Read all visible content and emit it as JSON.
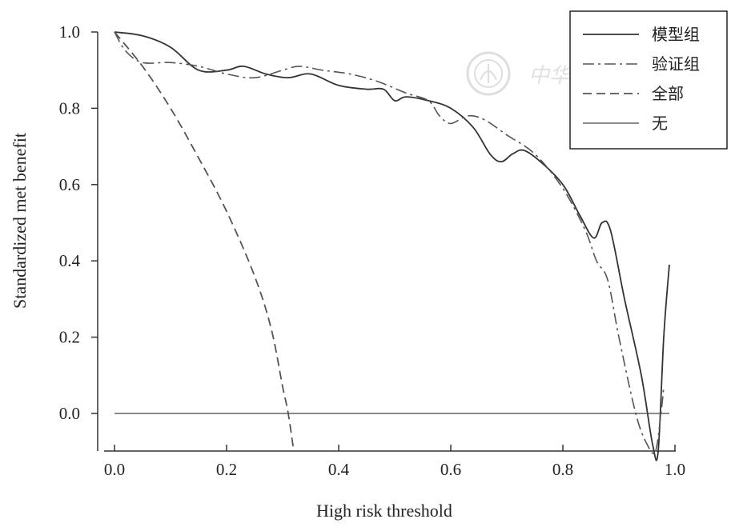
{
  "chart_data": {
    "type": "line",
    "title": "",
    "xlabel": "High risk threshold",
    "ylabel": "Standardized met benefit",
    "xlim": [
      0.0,
      1.0
    ],
    "ylim": [
      -0.1,
      1.0
    ],
    "x_ticks": [
      "0.0",
      "0.2",
      "0.4",
      "0.6",
      "0.8",
      "1.0"
    ],
    "y_ticks": [
      "0.0",
      "0.2",
      "0.4",
      "0.6",
      "0.8",
      "1.0"
    ],
    "legend_position": "top-right",
    "series": [
      {
        "name": "模型组",
        "style": "solid",
        "points": [
          [
            0.0,
            1.0
          ],
          [
            0.05,
            0.99
          ],
          [
            0.1,
            0.96
          ],
          [
            0.15,
            0.9
          ],
          [
            0.2,
            0.9
          ],
          [
            0.23,
            0.91
          ],
          [
            0.27,
            0.89
          ],
          [
            0.31,
            0.88
          ],
          [
            0.35,
            0.89
          ],
          [
            0.4,
            0.86
          ],
          [
            0.45,
            0.85
          ],
          [
            0.48,
            0.85
          ],
          [
            0.5,
            0.82
          ],
          [
            0.52,
            0.83
          ],
          [
            0.56,
            0.82
          ],
          [
            0.6,
            0.8
          ],
          [
            0.64,
            0.75
          ],
          [
            0.67,
            0.68
          ],
          [
            0.69,
            0.66
          ],
          [
            0.71,
            0.68
          ],
          [
            0.73,
            0.69
          ],
          [
            0.76,
            0.66
          ],
          [
            0.8,
            0.6
          ],
          [
            0.83,
            0.52
          ],
          [
            0.855,
            0.46
          ],
          [
            0.87,
            0.5
          ],
          [
            0.885,
            0.48
          ],
          [
            0.91,
            0.3
          ],
          [
            0.94,
            0.1
          ],
          [
            0.96,
            -0.08
          ],
          [
            0.97,
            -0.1
          ],
          [
            0.98,
            0.2
          ],
          [
            0.99,
            0.39
          ]
        ]
      },
      {
        "name": "验证组",
        "style": "dashdot",
        "points": [
          [
            0.0,
            1.0
          ],
          [
            0.02,
            0.95
          ],
          [
            0.05,
            0.92
          ],
          [
            0.1,
            0.92
          ],
          [
            0.15,
            0.91
          ],
          [
            0.2,
            0.89
          ],
          [
            0.25,
            0.88
          ],
          [
            0.3,
            0.9
          ],
          [
            0.33,
            0.91
          ],
          [
            0.37,
            0.9
          ],
          [
            0.42,
            0.89
          ],
          [
            0.47,
            0.87
          ],
          [
            0.52,
            0.84
          ],
          [
            0.56,
            0.82
          ],
          [
            0.58,
            0.78
          ],
          [
            0.6,
            0.76
          ],
          [
            0.63,
            0.78
          ],
          [
            0.66,
            0.77
          ],
          [
            0.7,
            0.73
          ],
          [
            0.75,
            0.68
          ],
          [
            0.8,
            0.59
          ],
          [
            0.84,
            0.48
          ],
          [
            0.86,
            0.4
          ],
          [
            0.88,
            0.35
          ],
          [
            0.9,
            0.2
          ],
          [
            0.93,
            0.0
          ],
          [
            0.95,
            -0.08
          ],
          [
            0.965,
            -0.1
          ],
          [
            0.975,
            0.0
          ],
          [
            0.98,
            0.07
          ]
        ]
      },
      {
        "name": "全部",
        "style": "dashed",
        "points": [
          [
            0.0,
            1.0
          ],
          [
            0.05,
            0.91
          ],
          [
            0.1,
            0.8
          ],
          [
            0.15,
            0.67
          ],
          [
            0.2,
            0.53
          ],
          [
            0.25,
            0.36
          ],
          [
            0.28,
            0.22
          ],
          [
            0.3,
            0.07
          ],
          [
            0.31,
            0.0
          ],
          [
            0.32,
            -0.1
          ]
        ]
      },
      {
        "name": "无",
        "style": "thin",
        "points": [
          [
            0.0,
            0.0
          ],
          [
            0.99,
            0.0
          ]
        ]
      }
    ]
  },
  "watermark": {
    "text": "中华普外",
    "icon": "seal-emblem-icon"
  }
}
